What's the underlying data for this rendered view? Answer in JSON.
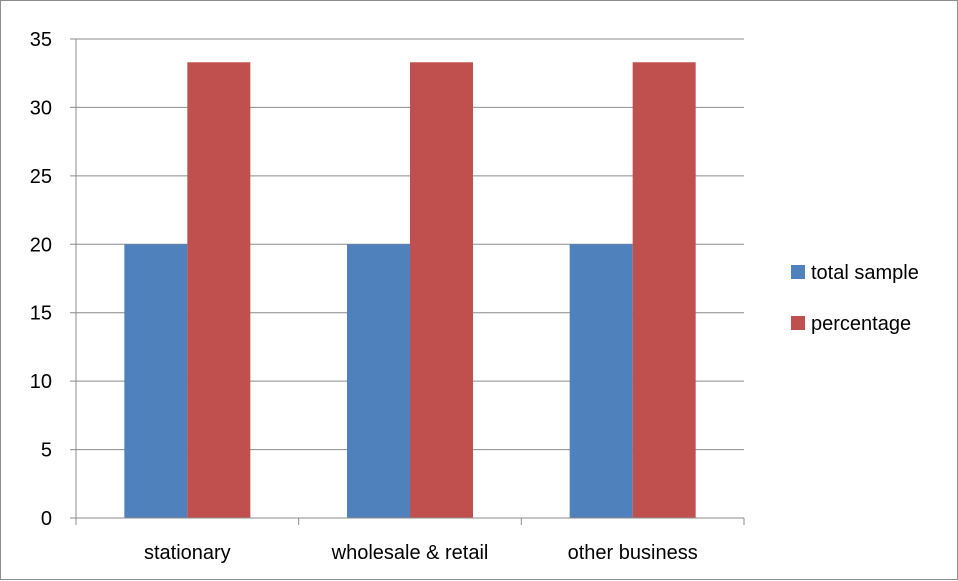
{
  "chart_data": {
    "type": "bar",
    "categories": [
      "stationary",
      "wholesale & retail",
      "other business"
    ],
    "series": [
      {
        "name": "total sample",
        "values": [
          20,
          20,
          20
        ],
        "color": "#4f81bd"
      },
      {
        "name": "percentage",
        "values": [
          33.3,
          33.3,
          33.3
        ],
        "color": "#c0504d"
      }
    ],
    "ylim": [
      0,
      35
    ],
    "yticks": [
      "0",
      "5",
      "10",
      "15",
      "20",
      "25",
      "30",
      "35"
    ],
    "grid": true,
    "legend": "right",
    "gridColor": "#8c8c8c"
  }
}
